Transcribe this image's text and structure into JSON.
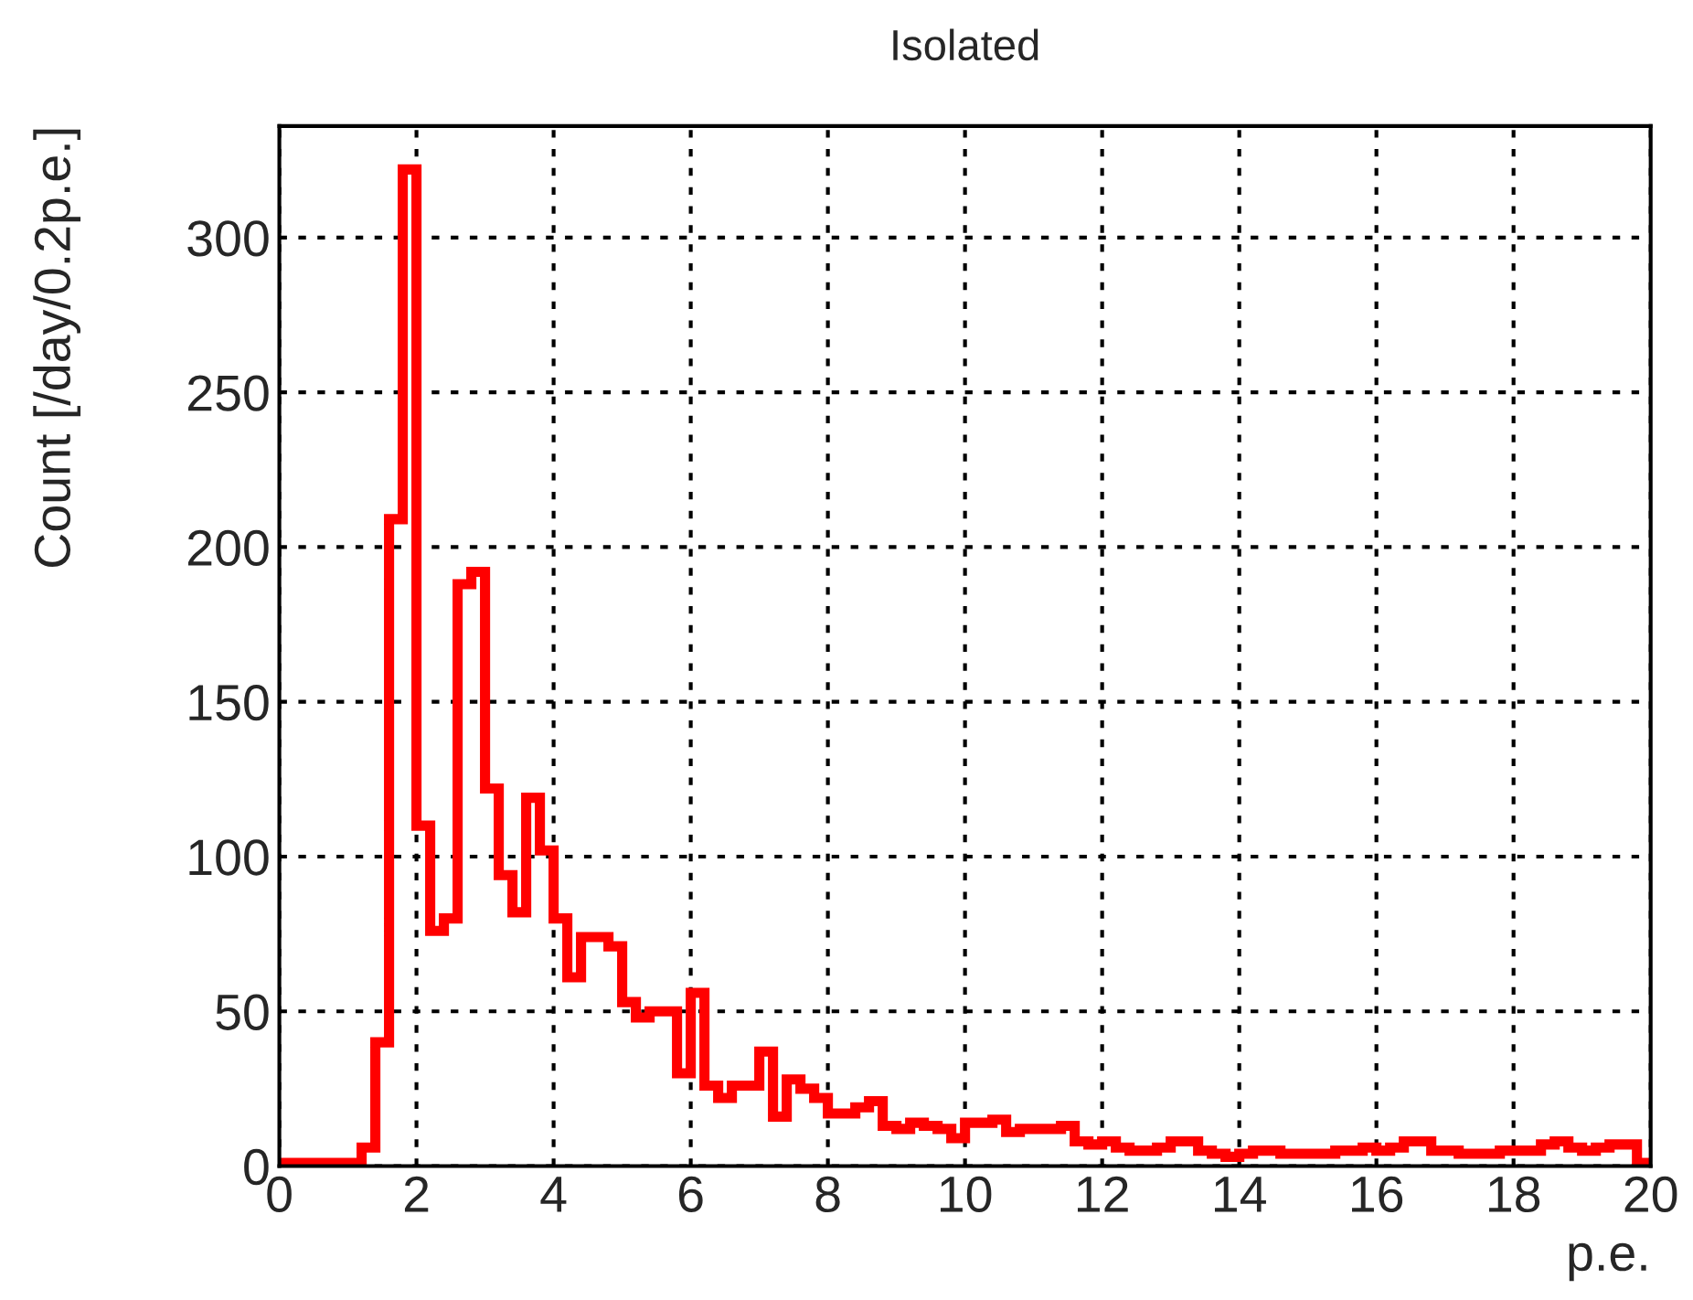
{
  "chart_data": {
    "type": "histogram",
    "title": "Isolated",
    "xlabel": "p.e.",
    "ylabel": "Count [/day/0.2p.e.]",
    "bins": [
      0,
      0.2,
      0.4,
      0.6,
      0.8,
      1.0,
      1.2,
      1.4,
      1.6,
      1.8,
      2.0,
      2.2,
      2.4,
      2.6,
      2.8,
      3.0,
      3.2,
      3.4,
      3.6,
      3.8,
      4.0,
      4.2,
      4.4,
      4.6,
      4.8,
      5.0,
      5.2,
      5.4,
      5.6,
      5.8,
      6.0,
      6.2,
      6.4,
      6.6,
      6.8,
      7.0,
      7.2,
      7.4,
      7.6,
      7.8,
      8.0,
      8.2,
      8.4,
      8.6,
      8.8,
      9.0,
      9.2,
      9.4,
      9.6,
      9.8,
      10.0,
      10.2,
      10.4,
      10.6,
      10.8,
      11.0,
      11.2,
      11.4,
      11.6,
      11.8,
      12.0,
      12.2,
      12.4,
      12.6,
      12.8,
      13.0,
      13.2,
      13.4,
      13.6,
      13.8,
      14.0,
      14.2,
      14.4,
      14.6,
      14.8,
      15.0,
      15.2,
      15.4,
      15.6,
      15.8,
      16.0,
      16.2,
      16.4,
      16.6,
      16.8,
      17.0,
      17.2,
      17.4,
      17.6,
      17.8,
      18.0,
      18.2,
      18.4,
      18.6,
      18.8,
      19.0,
      19.2,
      19.4,
      19.6,
      19.8,
      20.0
    ],
    "values": [
      1,
      1,
      1,
      1,
      1,
      1,
      6,
      40,
      209,
      322,
      110,
      76,
      80,
      188,
      192,
      122,
      94,
      82,
      119,
      102,
      80,
      61,
      74,
      74,
      71,
      53,
      48,
      50,
      50,
      30,
      56,
      26,
      22,
      26,
      26,
      37,
      16,
      28,
      25,
      22,
      17,
      17,
      19,
      21,
      13,
      12,
      14,
      13,
      12,
      9,
      14,
      14,
      15,
      11,
      12,
      12,
      12,
      13,
      8,
      7,
      8,
      6,
      5,
      5,
      6,
      8,
      8,
      5,
      4,
      3,
      4,
      5,
      5,
      4,
      4,
      4,
      4,
      5,
      5,
      6,
      5,
      6,
      8,
      8,
      5,
      5,
      4,
      4,
      4,
      5,
      5,
      5,
      7,
      8,
      6,
      5,
      6,
      7,
      7,
      1
    ],
    "color": "#ff0000",
    "xlim": [
      0,
      20
    ],
    "xticks": [
      0,
      2,
      4,
      6,
      8,
      10,
      12,
      14,
      16,
      18,
      20
    ],
    "ylim": [
      0,
      336
    ],
    "yticks": [
      0,
      50,
      100,
      150,
      200,
      250,
      300
    ],
    "grid": true
  }
}
